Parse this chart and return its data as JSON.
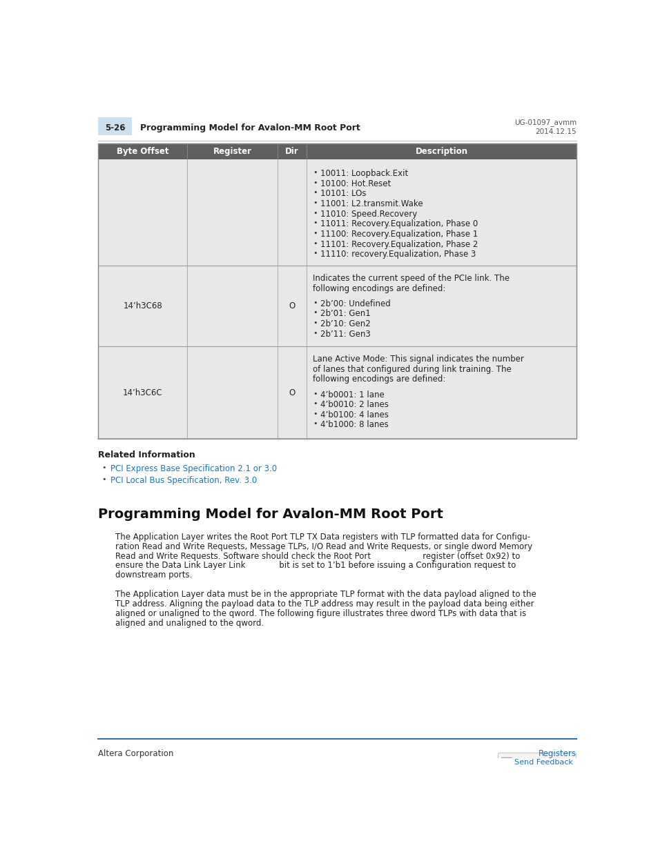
{
  "page_bg": "#ffffff",
  "header_bg": "#cce0f0",
  "header_number": "5-26",
  "header_title": "Programming Model for Avalon-MM Root Port",
  "header_right1": "UG-01097_avmm",
  "header_right2": "2014.12.15",
  "table_header_bg": "#606060",
  "table_header_color": "#ffffff",
  "table_row_bg": "#e8e8e8",
  "table_border_color": "#999999",
  "col_headers": [
    "Byte Offset",
    "Register",
    "Dir",
    "Description"
  ],
  "row1_bullets": [
    "10011: Loopback.Exit",
    "10100: Hot.Reset",
    "10101: LOs",
    "11001: L2.transmit.Wake",
    "11010: Speed.Recovery",
    "11011: Recovery.Equalization, Phase 0",
    "11100: Recovery.Equalization, Phase 1",
    "11101: Recovery.Equalization, Phase 2",
    "11110: recovery.Equalization, Phase 3"
  ],
  "row2_offset": "14’h3C68",
  "row2_dir": "O",
  "row2_intro": "Indicates the current speed of the PCIe link. The following encodings are defined:",
  "row2_bullets": [
    "2b’00: Undefined",
    "2b’01: Gen1",
    "2b’10: Gen2",
    "2b’11: Gen3"
  ],
  "row3_offset": "14’h3C6C",
  "row3_dir": "O",
  "row3_intro": "Lane Active Mode: This signal indicates the number of lanes that configured during link training. The following encodings are defined:",
  "row3_bullets": [
    "4’b0001: 1 lane",
    "4’b0010: 2 lanes",
    "4’b0100: 4 lanes",
    "4’b1000: 8 lanes"
  ],
  "related_info_title": "Related Information",
  "related_links": [
    "PCI Express Base Specification 2.1 or 3.0",
    "PCI Local Bus Specification, Rev. 3.0"
  ],
  "section_title": "Programming Model for Avalon-MM Root Port",
  "para1_lines": [
    "The Application Layer writes the Root Port TLP TX Data registers with TLP formatted data for Configu-",
    "ration Read and Write Requests, Message TLPs, I/O Read and Write Requests, or single dword Memory",
    "Read and Write Requests. Software should check the Root Port                    register (offset 0x92) to",
    "ensure the Data Link Layer Link             bit is set to 1’b1 before issuing a Configuration request to",
    "downstream ports."
  ],
  "para2_lines": [
    "The Application Layer data must be in the appropriate TLP format with the data payload aligned to the",
    "TLP address. Aligning the payload data to the TLP address may result in the payload data being either",
    "aligned or unaligned to the qword. The following figure illustrates three dword TLPs with data that is",
    "aligned and unaligned to the qword."
  ],
  "footer_left": "Altera Corporation",
  "footer_right": "Registers",
  "send_feedback_text": "Send Feedback",
  "link_color": "#1a75c4",
  "footer_line_color": "#1a75c4"
}
